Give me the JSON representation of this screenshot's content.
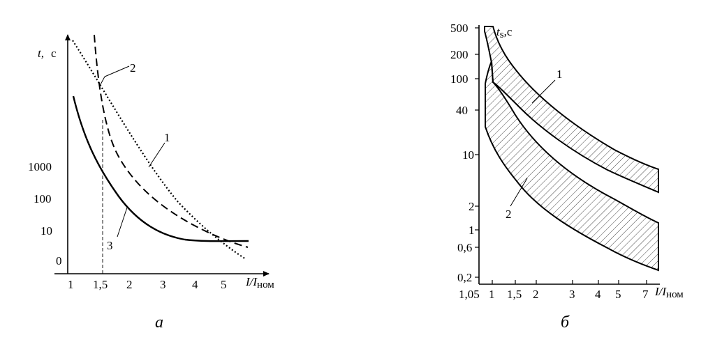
{
  "chart_data": [
    {
      "type": "line",
      "caption": "а",
      "ylabel": {
        "var": "t,",
        "unit": "с"
      },
      "xlabel": {
        "var": "I/I",
        "sub": "ном"
      },
      "x_ticks": [
        "1",
        "1,5",
        "2",
        "3",
        "4",
        "5"
      ],
      "y_ticks": [
        "1000",
        "100",
        "10",
        "0"
      ],
      "curve_labels": [
        "1",
        "2",
        "3"
      ],
      "series": [
        {
          "label": "1",
          "style": "dotted"
        },
        {
          "label": "2",
          "style": "dashed"
        },
        {
          "label": "3",
          "style": "solid"
        }
      ],
      "guide_x": "1,5"
    },
    {
      "type": "area",
      "caption": "б",
      "ylabel": {
        "var": "t",
        "sub": "s",
        "unit": ",с"
      },
      "xlabel": {
        "var": "I/I",
        "sub": "ном"
      },
      "x_ticks": [
        "1,05",
        "1",
        "1,5",
        "2",
        "3",
        "4",
        "5",
        "7"
      ],
      "y_ticks": [
        "500",
        "200",
        "100",
        "40",
        "10",
        "2",
        "1",
        "0,6",
        "0,2"
      ],
      "band_labels": [
        "1",
        "2"
      ],
      "log_y": true,
      "hatched_bands": true
    }
  ]
}
